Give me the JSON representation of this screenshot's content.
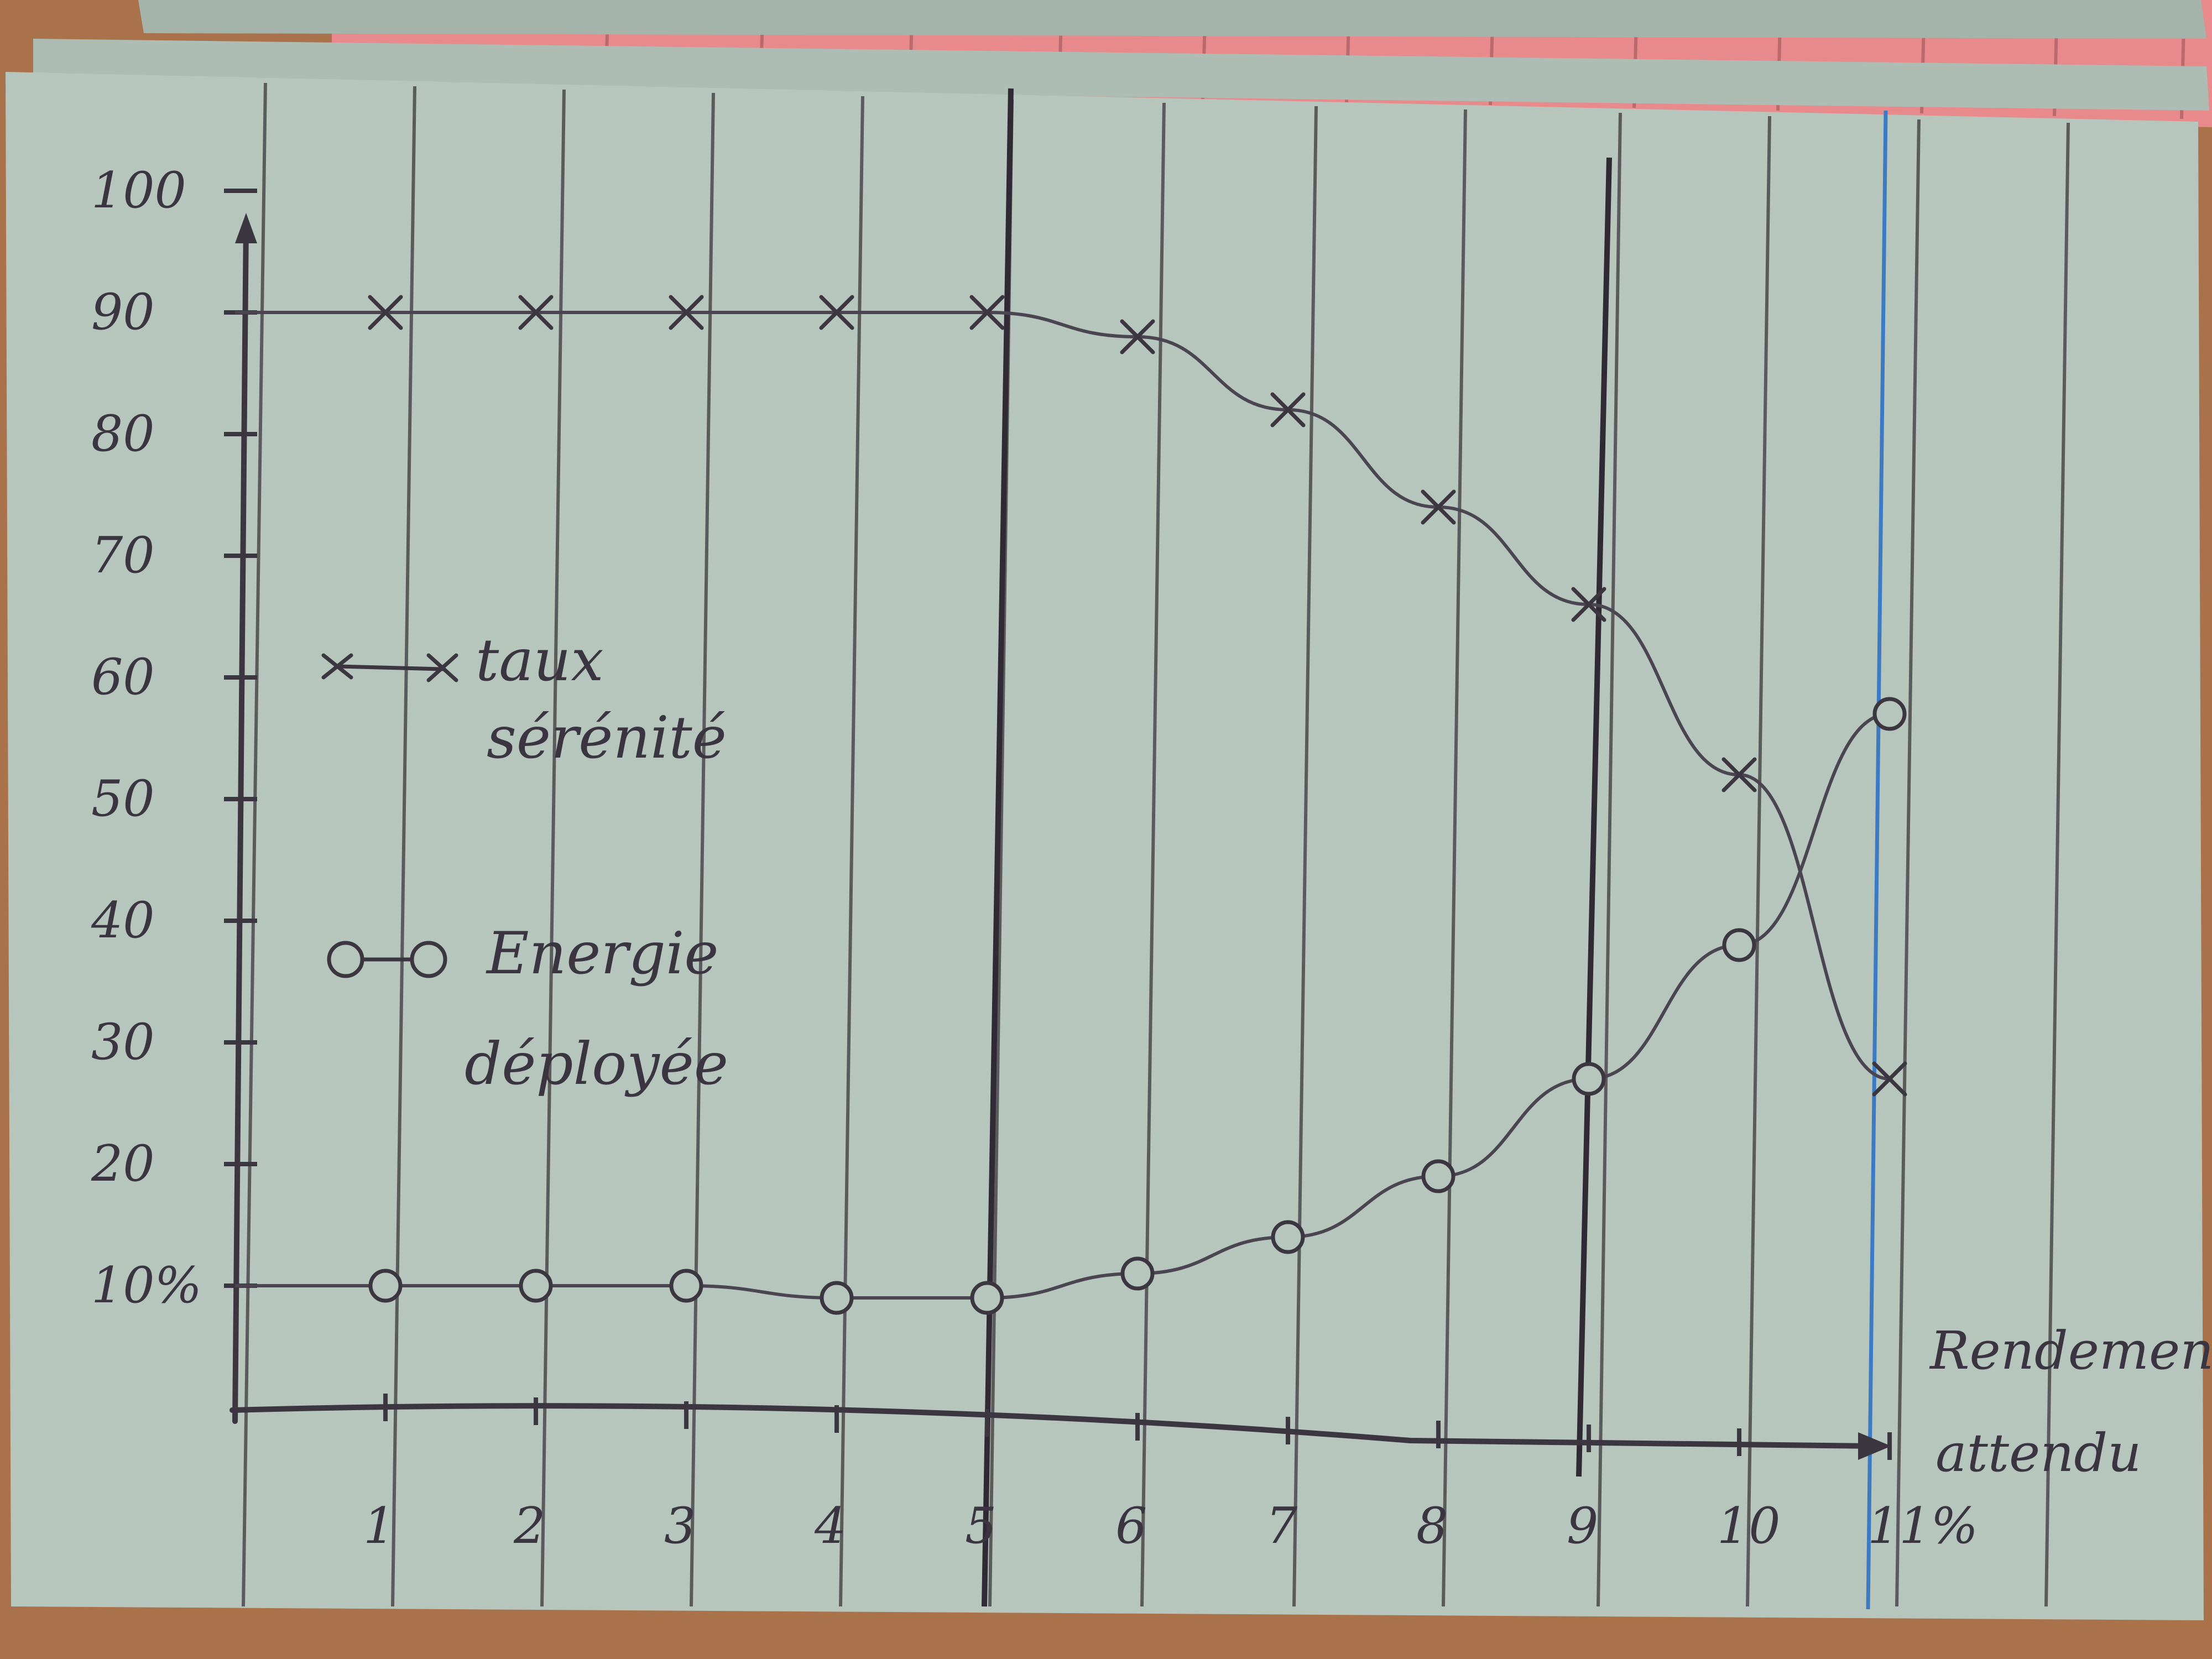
{
  "colors": {
    "paper": "#b7c6bd",
    "pink_card": "#e88a8c",
    "pencil": "#3c3641",
    "blue_line": "#3d7ac4",
    "table": "#a9724b"
  },
  "chart_data": {
    "type": "line",
    "x_tick_labels": [
      "1",
      "2",
      "3",
      "4",
      "5",
      "6",
      "7",
      "8",
      "9",
      "10",
      "11%"
    ],
    "y_tick_labels": [
      "10%",
      "20",
      "30",
      "40",
      "50",
      "60",
      "70",
      "80",
      "90",
      "100"
    ],
    "xlim": [
      0,
      11
    ],
    "ylim": [
      0,
      100
    ],
    "x_axis_label": "Rendement attendu",
    "grid": "vertical lines",
    "series": [
      {
        "name": "taux sérénité",
        "marker": "cross",
        "x": [
          1,
          2,
          3,
          4,
          5,
          6,
          7,
          8,
          9,
          10,
          11
        ],
        "y": [
          90,
          90,
          90,
          90,
          90,
          88,
          82,
          74,
          66,
          52,
          27
        ]
      },
      {
        "name": "Energie déployée",
        "marker": "circle",
        "x": [
          1,
          2,
          3,
          4,
          5,
          6,
          7,
          8,
          9,
          10,
          11
        ],
        "y": [
          10,
          10,
          10,
          9,
          9,
          11,
          14,
          19,
          27,
          38,
          57
        ]
      }
    ],
    "legend": [
      {
        "label_line1": "taux",
        "label_line2": "sérénité",
        "marker": "cross"
      },
      {
        "label_line1": "Energie",
        "label_line2": "déployée",
        "marker": "circle"
      }
    ],
    "legend_position": "left, inside plot"
  }
}
